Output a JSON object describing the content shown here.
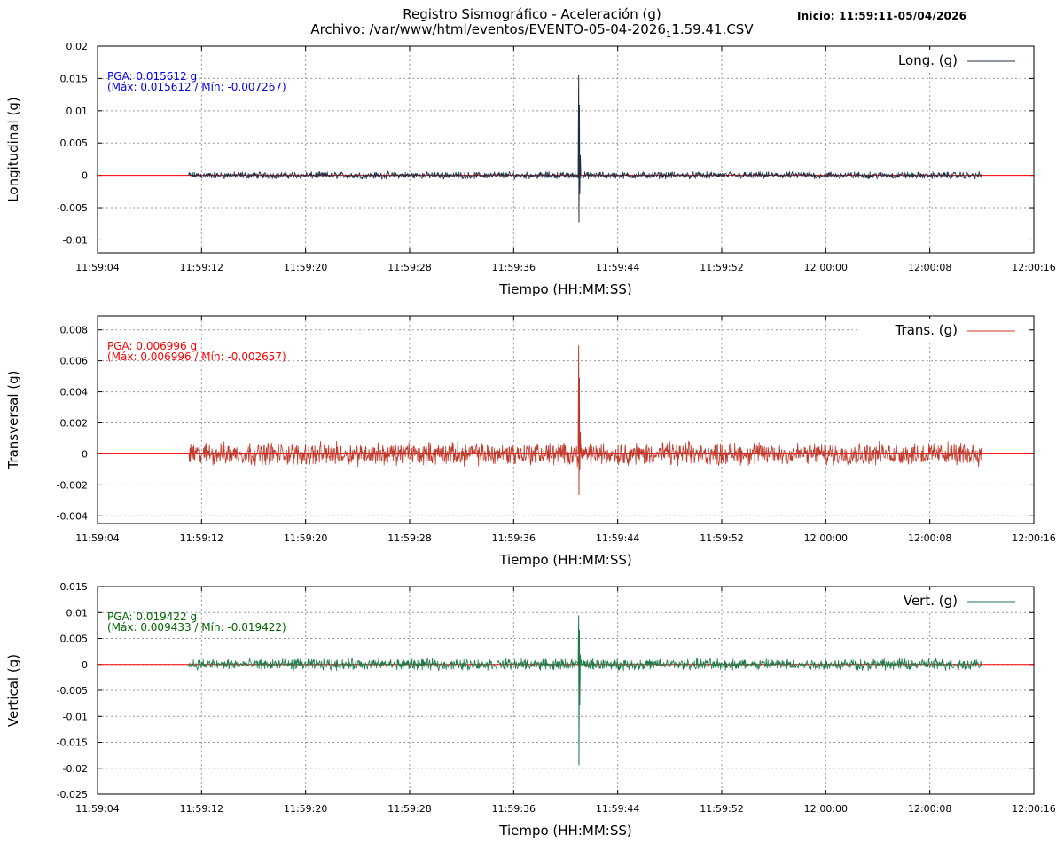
{
  "header": {
    "title": "Registro Sismográfico - Aceleración (g)",
    "file_prefix": "Archivo: /var/www/html/eventos/EVENTO-05-04-2026",
    "file_sub": "1",
    "file_suffix": "1.59.41.CSV",
    "start_label": "Inicio: 11:59:11-05/04/2026"
  },
  "chart_data": [
    {
      "type": "line",
      "channel": "long",
      "ylabel": "Longitudinal (g)",
      "xlabel": "Tiempo (HH:MM:SS)",
      "legend": "Long. (g)",
      "legend_position": "top-right",
      "annotation": [
        "PGA: 0.015612 g",
        "(Máx: 0.015612 / Mín: -0.007267)"
      ],
      "color": "#1f3044",
      "annotation_color": "#0000ee",
      "yticks": [
        "-0.01",
        "-0.005",
        "0",
        "0.005",
        "0.01",
        "0.015",
        "0.02"
      ],
      "ylim": [
        -0.012,
        0.02
      ],
      "xticks": [
        "11:59:04",
        "11:59:12",
        "11:59:20",
        "11:59:28",
        "11:59:36",
        "11:59:44",
        "11:59:52",
        "12:00:00",
        "12:00:08",
        "12:00:16"
      ],
      "xlim": [
        "11:59:04",
        "12:00:16"
      ],
      "grid": true,
      "data_start": "11:59:11",
      "data_end": "12:00:12",
      "noise_amplitude": 0.0006,
      "peak_time": "11:59:41",
      "max": 0.015612,
      "min": -0.007267,
      "pga": 0.015612
    },
    {
      "type": "line",
      "channel": "trans",
      "ylabel": "Transversal (g)",
      "xlabel": "Tiempo (HH:MM:SS)",
      "legend": "Trans. (g)",
      "legend_position": "top-right",
      "annotation": [
        "PGA: 0.006996 g",
        "(Máx: 0.006996 / Mín: -0.002657)"
      ],
      "color": "#c0392b",
      "annotation_color": "#ff0000",
      "yticks": [
        "-0.004",
        "-0.002",
        "0",
        "0.002",
        "0.004",
        "0.006",
        "0.008"
      ],
      "ylim": [
        -0.0045,
        0.0089
      ],
      "xticks": [
        "11:59:04",
        "11:59:12",
        "11:59:20",
        "11:59:28",
        "11:59:36",
        "11:59:44",
        "11:59:52",
        "12:00:00",
        "12:00:08",
        "12:00:16"
      ],
      "xlim": [
        "11:59:04",
        "12:00:16"
      ],
      "grid": true,
      "data_start": "11:59:11",
      "data_end": "12:00:12",
      "noise_amplitude": 0.0008,
      "peak_time": "11:59:41",
      "max": 0.006996,
      "min": -0.002657,
      "pga": 0.006996
    },
    {
      "type": "line",
      "channel": "vert",
      "ylabel": "Vertical (g)",
      "xlabel": "Tiempo (HH:MM:SS)",
      "legend": "Vert. (g)",
      "legend_position": "top-right",
      "annotation": [
        "PGA: 0.019422 g",
        "(Máx: 0.009433 / Mín: -0.019422)"
      ],
      "color": "#1e7a4a",
      "annotation_color": "#006400",
      "yticks": [
        "-0.025",
        "-0.02",
        "-0.015",
        "-0.01",
        "-0.005",
        "0",
        "0.005",
        "0.01",
        "0.015"
      ],
      "ylim": [
        -0.025,
        0.015
      ],
      "xticks": [
        "11:59:04",
        "11:59:12",
        "11:59:20",
        "11:59:28",
        "11:59:36",
        "11:59:44",
        "11:59:52",
        "12:00:00",
        "12:00:08",
        "12:00:16"
      ],
      "xlim": [
        "11:59:04",
        "12:00:16"
      ],
      "grid": true,
      "data_start": "11:59:11",
      "data_end": "12:00:12",
      "noise_amplitude": 0.0012,
      "peak_time": "11:59:41",
      "max": 0.009433,
      "min": -0.019422,
      "pga": 0.019422
    }
  ]
}
